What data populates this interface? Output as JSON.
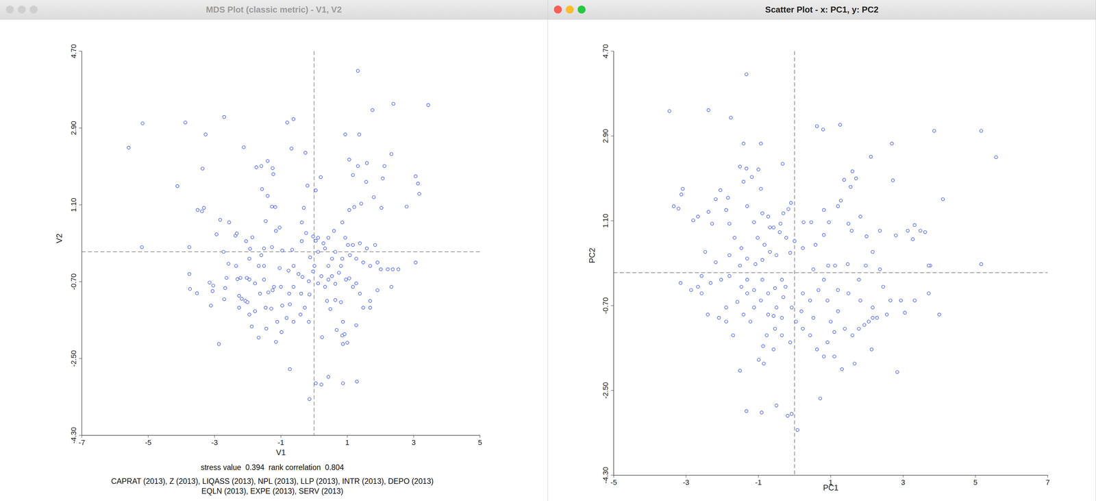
{
  "chart_data": [
    {
      "type": "scatter",
      "title": "MDS Plot (classic metric) - V1, V2",
      "x_label": "V1",
      "y_label": "V2",
      "xlim": [
        -7,
        5
      ],
      "xticks": [
        -7,
        -5,
        -3,
        -1,
        1,
        3,
        5
      ],
      "ylim": [
        -4.3,
        4.7
      ],
      "yticks": [
        {
          "value": -4.3,
          "label": "-4.30"
        },
        {
          "value": -2.5,
          "label": "-2.50"
        },
        {
          "value": -0.7,
          "label": "-0.70"
        },
        {
          "value": 1.1,
          "label": "1.10"
        },
        {
          "value": 2.9,
          "label": "2.90"
        },
        {
          "value": 4.7,
          "label": "4.70"
        }
      ],
      "ref_x": 0,
      "ref_y": 0,
      "color": "#2040e0",
      "marker": "circle",
      "grid": false,
      "notes": [
        "stress value  0.394  rank correlation  0.804",
        "CAPRAT (2013), Z (2013), LIQASS (2013), NPL (2013), LLP (2013), INTR (2013), DEPO (2013)",
        "EQLN (2013), EXPE (2013), SERV (2013)"
      ],
      "x": [
        -5.59,
        -5.17,
        -5.19,
        -4.12,
        -3.88,
        -3.27,
        -3.36,
        -2.71,
        -2.12,
        -3.76,
        -3.76,
        -3.74,
        -3.53,
        -3.11,
        -3.51,
        -3.38,
        -3.32,
        -2.83,
        -2.56,
        -2.37,
        -2.33,
        -2.05,
        -1.86,
        -1.74,
        -1.59,
        -1.4,
        -1.25,
        -1.57,
        -1.4,
        -1.23,
        -1.46,
        -1.27,
        -1.17,
        -0.68,
        -0.81,
        -0.62,
        -0.26,
        -0.2,
        0.05,
        0.2,
        -0.31,
        -0.37,
        -1.04,
        -1.27,
        -1.51,
        -1.59,
        -1.67,
        -1.51,
        -1.95,
        -2.58,
        -2.64,
        -2.31,
        -2.22,
        -2.03,
        -1.95,
        -2.26,
        -2.18,
        -2.07,
        -2.01,
        -3.06,
        -2.71,
        -1.88,
        -1.67,
        -1.44,
        -1.15,
        -0.98,
        -1.46,
        -1.29,
        -1.11,
        -0.83,
        -0.62,
        -0.41,
        -0.16,
        -0.28,
        -0.73,
        -0.96,
        -0.75,
        -1.0,
        -1.21,
        -1.38,
        -1.51,
        -1.78,
        -0.73,
        -0.14,
        0.05,
        0.22,
        0.43,
        0.87,
        1.29,
        0.24,
        0.68,
        0.85,
        0.87,
        0.92,
        1.0,
        0.39,
        0.49,
        0.64,
        0.81,
        0.33,
        0.43,
        0.64,
        0.22,
        0.12,
        -0.16,
        0.01,
        0.12,
        0.33,
        0.12,
        0.43,
        0.6,
        0.85,
        0.94,
        1.08,
        1.27,
        1.48,
        1.69,
        1.91,
        2.01,
        2.22,
        2.37,
        2.54,
        2.33,
        1.91,
        1.69,
        1.38,
        1.27,
        1.06,
        0.96,
        1.17,
        1.48,
        1.27,
        1.69,
        0.85,
        0.64,
        0.43,
        0.54,
        0.75,
        0.81,
        1.02,
        1.17,
        1.38,
        1.59,
        1.84,
        1.06,
        1.21,
        1.42,
        1.57,
        1.59,
        1.32,
        1.06,
        1.17,
        1.8,
        2.03,
        2.12,
        2.07,
        2.33,
        2.79,
        3.06,
        3.13,
        3.17,
        3.06,
        3.44,
        2.39,
        1.76,
        1.36,
        0.94,
        1.32,
        0.87,
        0.54,
        -0.03,
        0.05,
        0.28,
        -0.24,
        -0.37,
        -0.12,
        -0.66,
        -0.62,
        -1.04,
        -0.77,
        -0.47,
        -0.35,
        -0.62,
        -0.39,
        -0.14,
        -0.03,
        -0.96,
        -1.15,
        -1.25,
        -1.78,
        -2.26,
        -2.68,
        -2.35,
        -3.15,
        -3.04,
        -2.73,
        -1.93,
        -2.94,
        -1.95,
        -1.63,
        -2.87
      ],
      "y": [
        2.44,
        3.01,
        0.11,
        1.54,
        3.03,
        2.75,
        1.95,
        3.16,
        2.45,
        0.11,
        -0.52,
        -0.87,
        -0.97,
        -1.26,
        0.98,
        0.95,
        1.03,
        0.75,
        0.69,
        0.38,
        0.43,
        0.25,
        0.34,
        1.98,
        2.01,
        2.13,
        1.96,
        1.47,
        1.31,
        1.82,
        0.72,
        1.06,
        1.05,
        2.42,
        3.03,
        3.11,
        2.32,
        1.55,
        1.44,
        1.75,
        1.03,
        0.69,
        0.57,
        0.11,
        0.08,
        -0.08,
        -0.33,
        -0.33,
        -0.16,
        -0.28,
        -0.61,
        -0.64,
        -0.61,
        -0.61,
        -0.65,
        -1.03,
        -1.1,
        -1.15,
        -1.18,
        -0.92,
        -1.11,
        -1.75,
        -2.01,
        -1.8,
        -2.11,
        -1.88,
        -1.31,
        -1.33,
        -1.64,
        -1.55,
        -1.64,
        -1.47,
        -1.64,
        -1.31,
        -1.23,
        -1.26,
        -0.98,
        -0.82,
        -0.82,
        -0.95,
        -0.65,
        -0.74,
        -2.75,
        -3.45,
        -3.08,
        -3.11,
        -2.93,
        -3.08,
        -3.04,
        -2.0,
        -1.83,
        -1.96,
        -1.64,
        -1.93,
        -2.13,
        -1.15,
        -1.34,
        -1.13,
        -1.18,
        -0.82,
        -0.65,
        -0.75,
        -0.57,
        -0.74,
        -0.69,
        -0.33,
        0.0,
        0.08,
        0.33,
        0.33,
        0.49,
        0.69,
        0.33,
        -0.08,
        -0.16,
        -0.25,
        -0.33,
        -0.25,
        -0.41,
        -0.41,
        -0.41,
        -0.41,
        -0.82,
        -0.9,
        -1.15,
        -0.98,
        -0.74,
        -0.62,
        -0.65,
        -0.82,
        -1.31,
        -1.72,
        -1.31,
        -0.16,
        0.0,
        -0.33,
        -0.57,
        -0.49,
        -0.33,
        0.16,
        0.16,
        0.2,
        0.08,
        0.16,
        0.98,
        1.05,
        1.13,
        1.64,
        2.08,
        2.01,
        2.16,
        1.8,
        1.28,
        1.03,
        2.01,
        1.72,
        2.29,
        1.06,
        1.77,
        1.6,
        1.36,
        -0.25,
        3.44,
        3.47,
        3.32,
        2.75,
        2.75,
        4.24,
        -2.16,
        -0.16,
        0.36,
        0.26,
        0.2,
        0.44,
        0.25,
        -0.13,
        0.05,
        -0.33,
        -0.38,
        -0.44,
        -0.52,
        -0.59,
        -0.82,
        -0.98,
        -1.0,
        -0.46,
        0.03,
        0.49,
        -0.9,
        -1.39,
        -1.31,
        -0.85,
        -0.33,
        -0.72,
        -0.79,
        0.0,
        0.07,
        0.41,
        -1.47,
        -0.98,
        -2.16
      ]
    },
    {
      "type": "scatter",
      "title": "Scatter Plot - x: PC1, y: PC2",
      "x_label": "PC1",
      "y_label": "PC2",
      "xlim": [
        -5,
        7
      ],
      "xticks": [
        -5,
        -3,
        -1,
        1,
        3,
        5,
        7
      ],
      "ylim": [
        -4.3,
        4.7
      ],
      "yticks": [
        {
          "value": -4.3,
          "label": "-4.30"
        },
        {
          "value": -2.5,
          "label": "-2.50"
        },
        {
          "value": -0.7,
          "label": "-0.70"
        },
        {
          "value": 1.1,
          "label": "1.10"
        },
        {
          "value": 2.9,
          "label": "2.90"
        },
        {
          "value": 4.7,
          "label": "4.70"
        }
      ],
      "ref_x": 0,
      "ref_y": 0,
      "color": "#2040e0",
      "marker": "circle",
      "grid": false,
      "x": [
        -3.46,
        -2.38,
        -1.76,
        -1.33,
        -1.41,
        -0.93,
        0.62,
        0.79,
        1.26,
        2.11,
        2.69,
        3.86,
        5.16,
        5.57,
        4.1,
        2.72,
        -0.33,
        -3.09,
        -3.13,
        -3.21,
        -3.34,
        -2.8,
        -2.67,
        -2.38,
        -2.18,
        -2.05,
        -1.84,
        -1.51,
        -1.33,
        -1.18,
        -1.0,
        -1.41,
        -0.93,
        -2.28,
        -1.89,
        -1.8,
        -1.31,
        -1.12,
        -0.89,
        -0.73,
        -0.58,
        -0.39,
        -0.17,
        -0.1,
        0.25,
        0.46,
        1.28,
        1.37,
        1.55,
        1.6,
        1.7,
        1.2,
        1.49,
        1.58,
        1.82,
        1.99,
        2.16,
        2.36,
        2.8,
        3.13,
        3.32,
        3.27,
        3.48,
        3.61,
        3.75,
        3.71,
        4.0,
        3.05,
        2.94,
        2.65,
        2.45,
        2.16,
        2.05,
        1.93,
        2.16,
        2.55,
        1.78,
        1.6,
        1.39,
        1.1,
        0.91,
        0.81,
        0.62,
        0.43,
        0.23,
        0.04,
        -0.12,
        -0.35,
        -0.54,
        -0.77,
        -0.87,
        -0.58,
        -0.85,
        -0.99,
        -1.51,
        -1.33,
        -0.91,
        -0.5,
        -0.19,
        -0.08,
        0.08,
        0.71,
        1.1,
        1.31,
        1.66,
        2.13,
        2.28,
        2.84,
        5.16,
        3.71,
        3.32,
        2.36,
        1.97,
        1.47,
        1.12,
        0.93,
        0.81,
        0.52,
        0.66,
        0.91,
        1.2,
        1.49,
        0.43,
        0.23,
        0.19,
        -0.08,
        -0.31,
        -0.5,
        -0.73,
        -0.93,
        -1.12,
        -1.22,
        -1.41,
        -1.58,
        -1.89,
        -2.09,
        -2.4,
        -2.57,
        -2.67,
        -2.32,
        -2.03,
        -1.8,
        -1.51,
        -1.31,
        -1.08,
        -0.89,
        -0.68,
        -0.5,
        -0.12,
        0.0,
        0.23,
        0.58,
        0.81,
        0.95,
        0.81,
        -3.15,
        -2.86,
        -2.57,
        -2.18,
        -1.8,
        -1.47,
        -1.02,
        -1.47,
        -1.31,
        -1.12,
        -0.89,
        -0.35,
        -0.25,
        -0.54,
        1.82,
        -1.89,
        -1.7,
        -0.73,
        -0.35,
        1.0,
        0.52,
        -0.58,
        -1.31,
        1.2,
        1.78,
        -0.41,
        -0.23,
        -0.68,
        -0.31,
        -1.66,
        -2.47,
        -0.83
      ],
      "y": [
        3.43,
        3.45,
        3.29,
        4.21,
        2.74,
        2.74,
        3.11,
        3.04,
        3.14,
        2.46,
        2.74,
        3.01,
        3.01,
        2.45,
        1.56,
        1.96,
        2.31,
        1.78,
        1.66,
        1.36,
        1.41,
        1.11,
        1.19,
        1.29,
        1.56,
        1.75,
        1.59,
        2.25,
        2.21,
        2.03,
        2.19,
        1.93,
        1.78,
        1.04,
        1.33,
        1.04,
        1.41,
        1.07,
        1.26,
        1.19,
        0.96,
        1.04,
        1.35,
        1.48,
        1.07,
        1.07,
        1.53,
        1.97,
        1.82,
        2.15,
        2.0,
        1.41,
        1.04,
        0.89,
        1.19,
        0.77,
        0.44,
        0.89,
        0.79,
        0.89,
        1.01,
        0.71,
        0.89,
        0.86,
        0.15,
        -0.44,
        -0.89,
        -0.85,
        -0.59,
        -0.59,
        -0.3,
        -0.74,
        -1.04,
        -1.11,
        -0.96,
        -0.89,
        -1.19,
        -1.33,
        -1.19,
        -1.26,
        -1.48,
        -1.78,
        -1.63,
        -1.33,
        -1.19,
        -1.04,
        -1.48,
        -1.33,
        -1.19,
        -1.33,
        -1.56,
        -1.63,
        -1.93,
        -1.85,
        -2.08,
        -2.94,
        -2.97,
        -2.82,
        -3.04,
        -3.0,
        -3.34,
        -2.67,
        -1.78,
        -2.05,
        -1.93,
        -1.63,
        -0.96,
        -2.11,
        0.18,
        0.15,
        -0.59,
        0.07,
        0.15,
        0.18,
        0.15,
        0.15,
        -0.15,
        0.07,
        -0.37,
        -0.59,
        -0.37,
        -0.44,
        -0.59,
        -0.44,
        -0.82,
        -0.74,
        -0.52,
        -0.74,
        -0.44,
        -0.59,
        -0.74,
        -1.04,
        -0.89,
        -0.62,
        -0.74,
        -0.96,
        -0.89,
        -0.44,
        -0.3,
        -0.22,
        -0.15,
        -0.07,
        0.15,
        0.3,
        0.18,
        0.27,
        0.44,
        0.37,
        0.42,
        0.67,
        0.52,
        0.59,
        0.8,
        1.07,
        1.33,
        -0.22,
        -0.37,
        -0.07,
        0.22,
        0.37,
        0.52,
        0.74,
        -0.3,
        -0.44,
        -0.37,
        -0.15,
        -0.15,
        -0.3,
        -0.33,
        -0.59,
        -1.04,
        -1.33,
        -0.89,
        -0.96,
        -1.04,
        -0.96,
        -0.92,
        -0.15,
        -0.82,
        -0.15,
        0.86,
        0.74,
        0.96,
        1.26,
        0.74,
        0.44,
        0.59
      ]
    }
  ]
}
